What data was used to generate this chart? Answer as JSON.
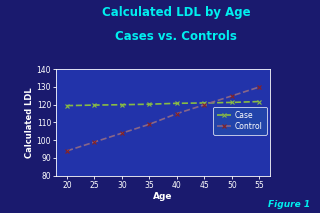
{
  "title_line1": "Calculated LDL by Age",
  "title_line2": "Cases vs. Controls",
  "title_color": "#00EFEF",
  "xlabel": "Age",
  "ylabel": "Calculated LDL",
  "label_color": "white",
  "background_outer": "#1a1a6e",
  "background_plot": "#2233aa",
  "x_case": [
    20,
    25,
    30,
    35,
    40,
    45,
    50,
    55
  ],
  "y_case": [
    119.5,
    119.8,
    120.0,
    120.3,
    120.8,
    121.0,
    121.3,
    121.8
  ],
  "x_control": [
    20,
    25,
    30,
    35,
    40,
    45,
    50,
    55
  ],
  "y_control": [
    94,
    99,
    104,
    109,
    115,
    120,
    125,
    130
  ],
  "case_color": "#88BB44",
  "control_color": "#886688",
  "control_marker_color": "#882222",
  "ylim": [
    80,
    140
  ],
  "xlim": [
    18,
    57
  ],
  "yticks": [
    80,
    90,
    100,
    110,
    120,
    130,
    140
  ],
  "xticks": [
    20,
    25,
    30,
    35,
    40,
    45,
    50,
    55
  ],
  "tick_color": "white",
  "spine_color": "white",
  "legend_bg": "#2244AA",
  "legend_edge": "white",
  "legend_text_color": "white",
  "figure_1_color": "#00EFEF",
  "line_width": 1.2
}
